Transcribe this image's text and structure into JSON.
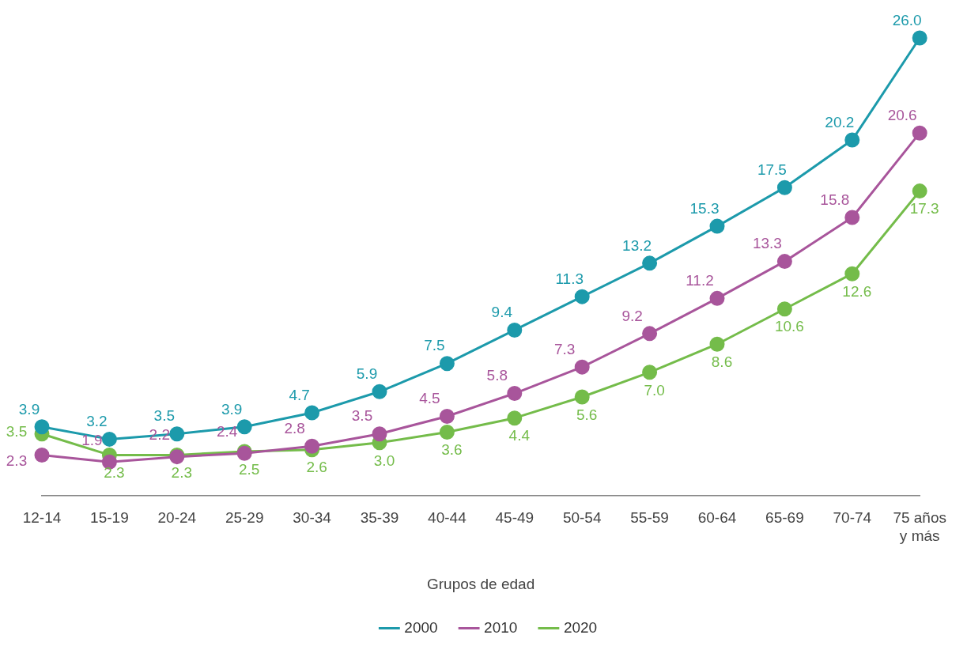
{
  "chart_data": {
    "type": "line",
    "xlabel": "Grupos de edad",
    "categories": [
      "12-14",
      "15-19",
      "20-24",
      "25-29",
      "30-34",
      "35-39",
      "40-44",
      "45-49",
      "50-54",
      "55-59",
      "60-64",
      "65-69",
      "70-74",
      "75 años y más"
    ],
    "series": [
      {
        "name": "2000",
        "color": "#1c9aab",
        "values": [
          3.9,
          3.2,
          3.5,
          3.9,
          4.7,
          5.9,
          7.5,
          9.4,
          11.3,
          13.2,
          15.3,
          17.5,
          20.2,
          26.0
        ],
        "value_labels": [
          "3.9",
          "3.2",
          "3.5",
          "3.9",
          "4.7",
          "5.9",
          "7.5",
          "9.4",
          "11.3",
          "13.2",
          "15.3",
          "17.5",
          "20.2",
          "26.0"
        ]
      },
      {
        "name": "2010",
        "color": "#a8559b",
        "values": [
          2.3,
          1.9,
          2.2,
          2.4,
          2.8,
          3.5,
          4.5,
          5.8,
          7.3,
          9.2,
          11.2,
          13.3,
          15.8,
          20.6
        ],
        "value_labels": [
          "2.3",
          "1.9",
          "2.2",
          "2.4",
          "2.8",
          "3.5",
          "4.5",
          "5.8",
          "7.3",
          "9.2",
          "11.2",
          "13.3",
          "15.8",
          "20.6"
        ]
      },
      {
        "name": "2020",
        "color": "#74bc4a",
        "values": [
          3.5,
          2.3,
          2.3,
          2.5,
          2.6,
          3.0,
          3.6,
          4.4,
          5.6,
          7.0,
          8.6,
          10.6,
          12.6,
          17.3
        ],
        "value_labels": [
          "3.5",
          "2.3",
          "2.3",
          "2.5",
          "2.6",
          "3.0",
          "3.6",
          "4.4",
          "5.6",
          "7.0",
          "8.6",
          "10.6",
          "12.6",
          "17.3"
        ]
      }
    ],
    "legend": "bottom",
    "grid": false,
    "marker": "circle",
    "line_style": "solid"
  }
}
